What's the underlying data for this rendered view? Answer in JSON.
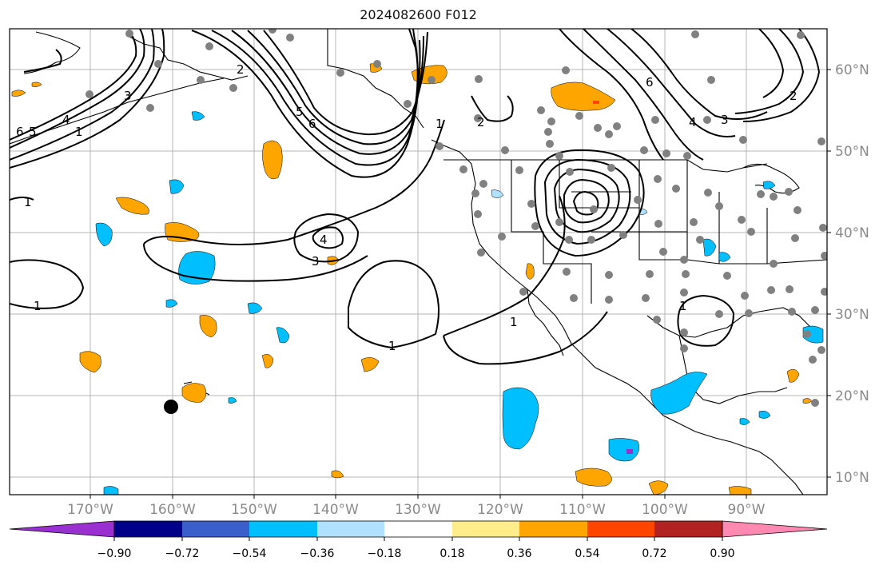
{
  "title": "2024082600 F012",
  "map": {
    "lon_labels": [
      "170°W",
      "160°W",
      "150°W",
      "140°W",
      "130°W",
      "120°W",
      "110°W",
      "100°W",
      "90°W"
    ],
    "lat_labels": [
      "60°N",
      "50°N",
      "40°N",
      "30°N",
      "20°N",
      "10°N"
    ],
    "label_color": "#8a8a8a",
    "contour_labels": [
      "1",
      "1",
      "1",
      "1",
      "1",
      "1",
      "1",
      "2",
      "2",
      "2",
      "3",
      "3",
      "3",
      "4",
      "4",
      "4",
      "5",
      "5",
      "6",
      "6",
      "6"
    ]
  },
  "colorbar": {
    "colors": [
      "#9b30d0",
      "#00008b",
      "#3a5fcd",
      "#00bfff",
      "#b0e2ff",
      "#ffffff",
      "#ffec8b",
      "#ffa500",
      "#ff4500",
      "#b22222",
      "#ff89b0"
    ],
    "tick_labels": [
      "−0.90",
      "−0.72",
      "−0.54",
      "−0.36",
      "−0.18",
      "0.18",
      "0.36",
      "0.54",
      "0.72",
      "0.90"
    ]
  },
  "colors": {
    "station_dot": "#808080",
    "grid": "#b5b5b5",
    "contour": "#000000"
  }
}
